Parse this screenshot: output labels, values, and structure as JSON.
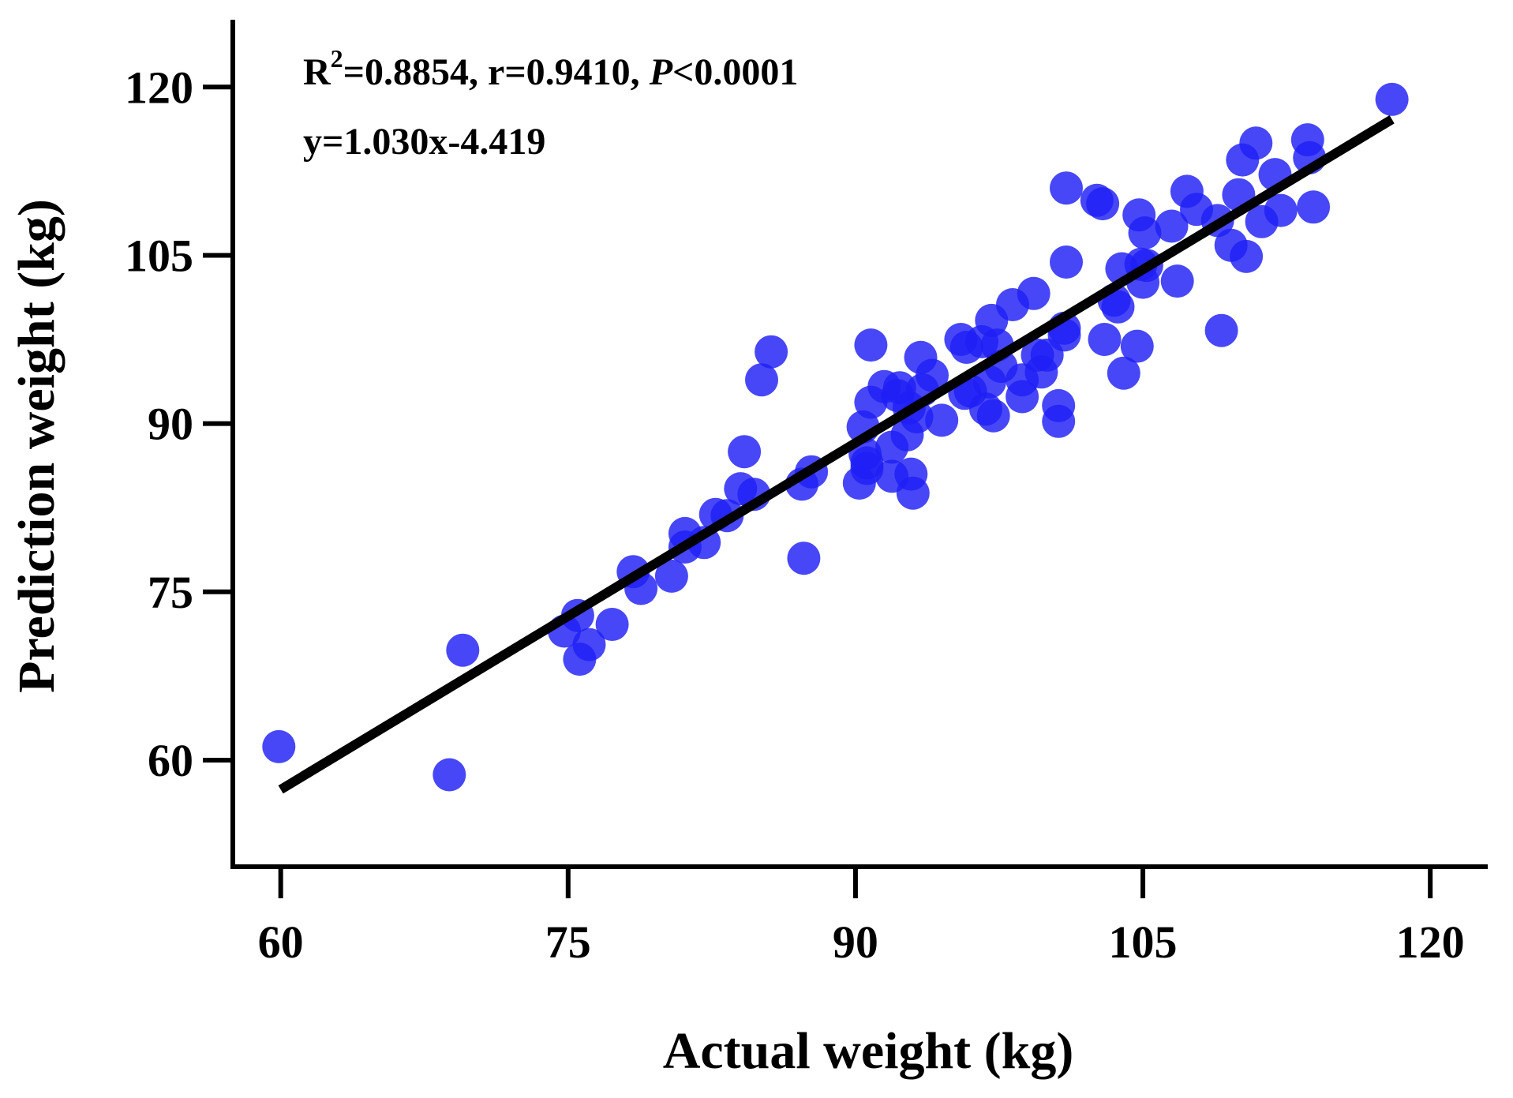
{
  "chart_data": {
    "type": "scatter",
    "xlabel": "Actual weight  (kg)",
    "ylabel": "Prediction weight  (kg)",
    "xlim": [
      57.5,
      123
    ],
    "ylim": [
      50.5,
      126
    ],
    "xticks": [
      "60",
      "75",
      "90",
      "105",
      "120"
    ],
    "yticks": [
      "60",
      "75",
      "90",
      "105",
      "120"
    ],
    "annotation": {
      "r_prefix": "R",
      "r_sup": "2",
      "r_rest": "=0.8854, r=0.9410, ",
      "p_label": "P",
      "p_value": "<0.0001",
      "equation": "y=1.030x-4.419"
    },
    "regression": {
      "slope": 1.03,
      "intercept": -4.419,
      "x_start": 60,
      "x_end": 118
    },
    "colors": {
      "points": "#1f1ff5",
      "line": "#000000",
      "axis": "#000000"
    },
    "points": [
      [
        59.9,
        61.2
      ],
      [
        68.8,
        58.7
      ],
      [
        69.5,
        69.8
      ],
      [
        74.8,
        71.5
      ],
      [
        75.5,
        72.9
      ],
      [
        75.6,
        69.0
      ],
      [
        76.1,
        70.3
      ],
      [
        77.3,
        72.1
      ],
      [
        78.4,
        76.8
      ],
      [
        78.8,
        75.3
      ],
      [
        80.4,
        76.4
      ],
      [
        81.1,
        80.2
      ],
      [
        81.1,
        79.0
      ],
      [
        82.1,
        79.4
      ],
      [
        82.7,
        81.9
      ],
      [
        83.3,
        81.8
      ],
      [
        84.0,
        84.2
      ],
      [
        84.2,
        87.5
      ],
      [
        84.7,
        83.7
      ],
      [
        85.1,
        93.9
      ],
      [
        85.6,
        96.4
      ],
      [
        87.2,
        84.6
      ],
      [
        87.3,
        78.0
      ],
      [
        87.7,
        85.7
      ],
      [
        90.2,
        84.7
      ],
      [
        90.4,
        89.7
      ],
      [
        90.5,
        87.3
      ],
      [
        90.6,
        86.5
      ],
      [
        90.6,
        86.0
      ],
      [
        90.8,
        91.9
      ],
      [
        90.8,
        97.0
      ],
      [
        91.5,
        93.3
      ],
      [
        91.9,
        85.3
      ],
      [
        91.9,
        87.9
      ],
      [
        92.2,
        92.5
      ],
      [
        92.3,
        93.2
      ],
      [
        92.7,
        89.0
      ],
      [
        92.8,
        91.4
      ],
      [
        92.9,
        85.5
      ],
      [
        93.0,
        83.8
      ],
      [
        93.2,
        90.6
      ],
      [
        93.4,
        95.9
      ],
      [
        93.5,
        93.0
      ],
      [
        94.0,
        94.3
      ],
      [
        94.5,
        90.3
      ],
      [
        95.5,
        97.5
      ],
      [
        95.7,
        92.7
      ],
      [
        95.8,
        96.8
      ],
      [
        96.0,
        92.9
      ],
      [
        96.6,
        97.3
      ],
      [
        96.8,
        91.3
      ],
      [
        97.0,
        93.7
      ],
      [
        97.1,
        99.2
      ],
      [
        97.2,
        90.7
      ],
      [
        97.4,
        97.0
      ],
      [
        97.6,
        95.1
      ],
      [
        98.2,
        100.6
      ],
      [
        98.7,
        93.9
      ],
      [
        98.7,
        92.4
      ],
      [
        99.3,
        101.6
      ],
      [
        99.5,
        96.1
      ],
      [
        99.7,
        94.6
      ],
      [
        100.0,
        96.1
      ],
      [
        100.6,
        91.6
      ],
      [
        100.6,
        90.2
      ],
      [
        100.9,
        98.5
      ],
      [
        100.9,
        97.9
      ],
      [
        101.0,
        111.0
      ],
      [
        101.0,
        104.4
      ],
      [
        102.6,
        109.9
      ],
      [
        102.9,
        109.6
      ],
      [
        103.0,
        97.5
      ],
      [
        103.5,
        101.0
      ],
      [
        103.7,
        100.4
      ],
      [
        103.9,
        103.8
      ],
      [
        104.0,
        94.5
      ],
      [
        104.7,
        96.9
      ],
      [
        104.8,
        108.6
      ],
      [
        104.9,
        104.2
      ],
      [
        105.0,
        102.6
      ],
      [
        105.1,
        107.0
      ],
      [
        105.2,
        104.1
      ],
      [
        106.5,
        107.6
      ],
      [
        106.8,
        102.7
      ],
      [
        107.3,
        110.7
      ],
      [
        107.8,
        109.1
      ],
      [
        108.9,
        108.1
      ],
      [
        109.1,
        98.3
      ],
      [
        109.6,
        105.9
      ],
      [
        110.0,
        110.4
      ],
      [
        110.2,
        113.5
      ],
      [
        110.4,
        104.9
      ],
      [
        110.9,
        115.0
      ],
      [
        111.2,
        108.0
      ],
      [
        111.9,
        112.2
      ],
      [
        112.2,
        109.0
      ],
      [
        113.6,
        115.3
      ],
      [
        113.7,
        113.7
      ],
      [
        113.9,
        109.3
      ],
      [
        118.0,
        118.9
      ]
    ]
  }
}
